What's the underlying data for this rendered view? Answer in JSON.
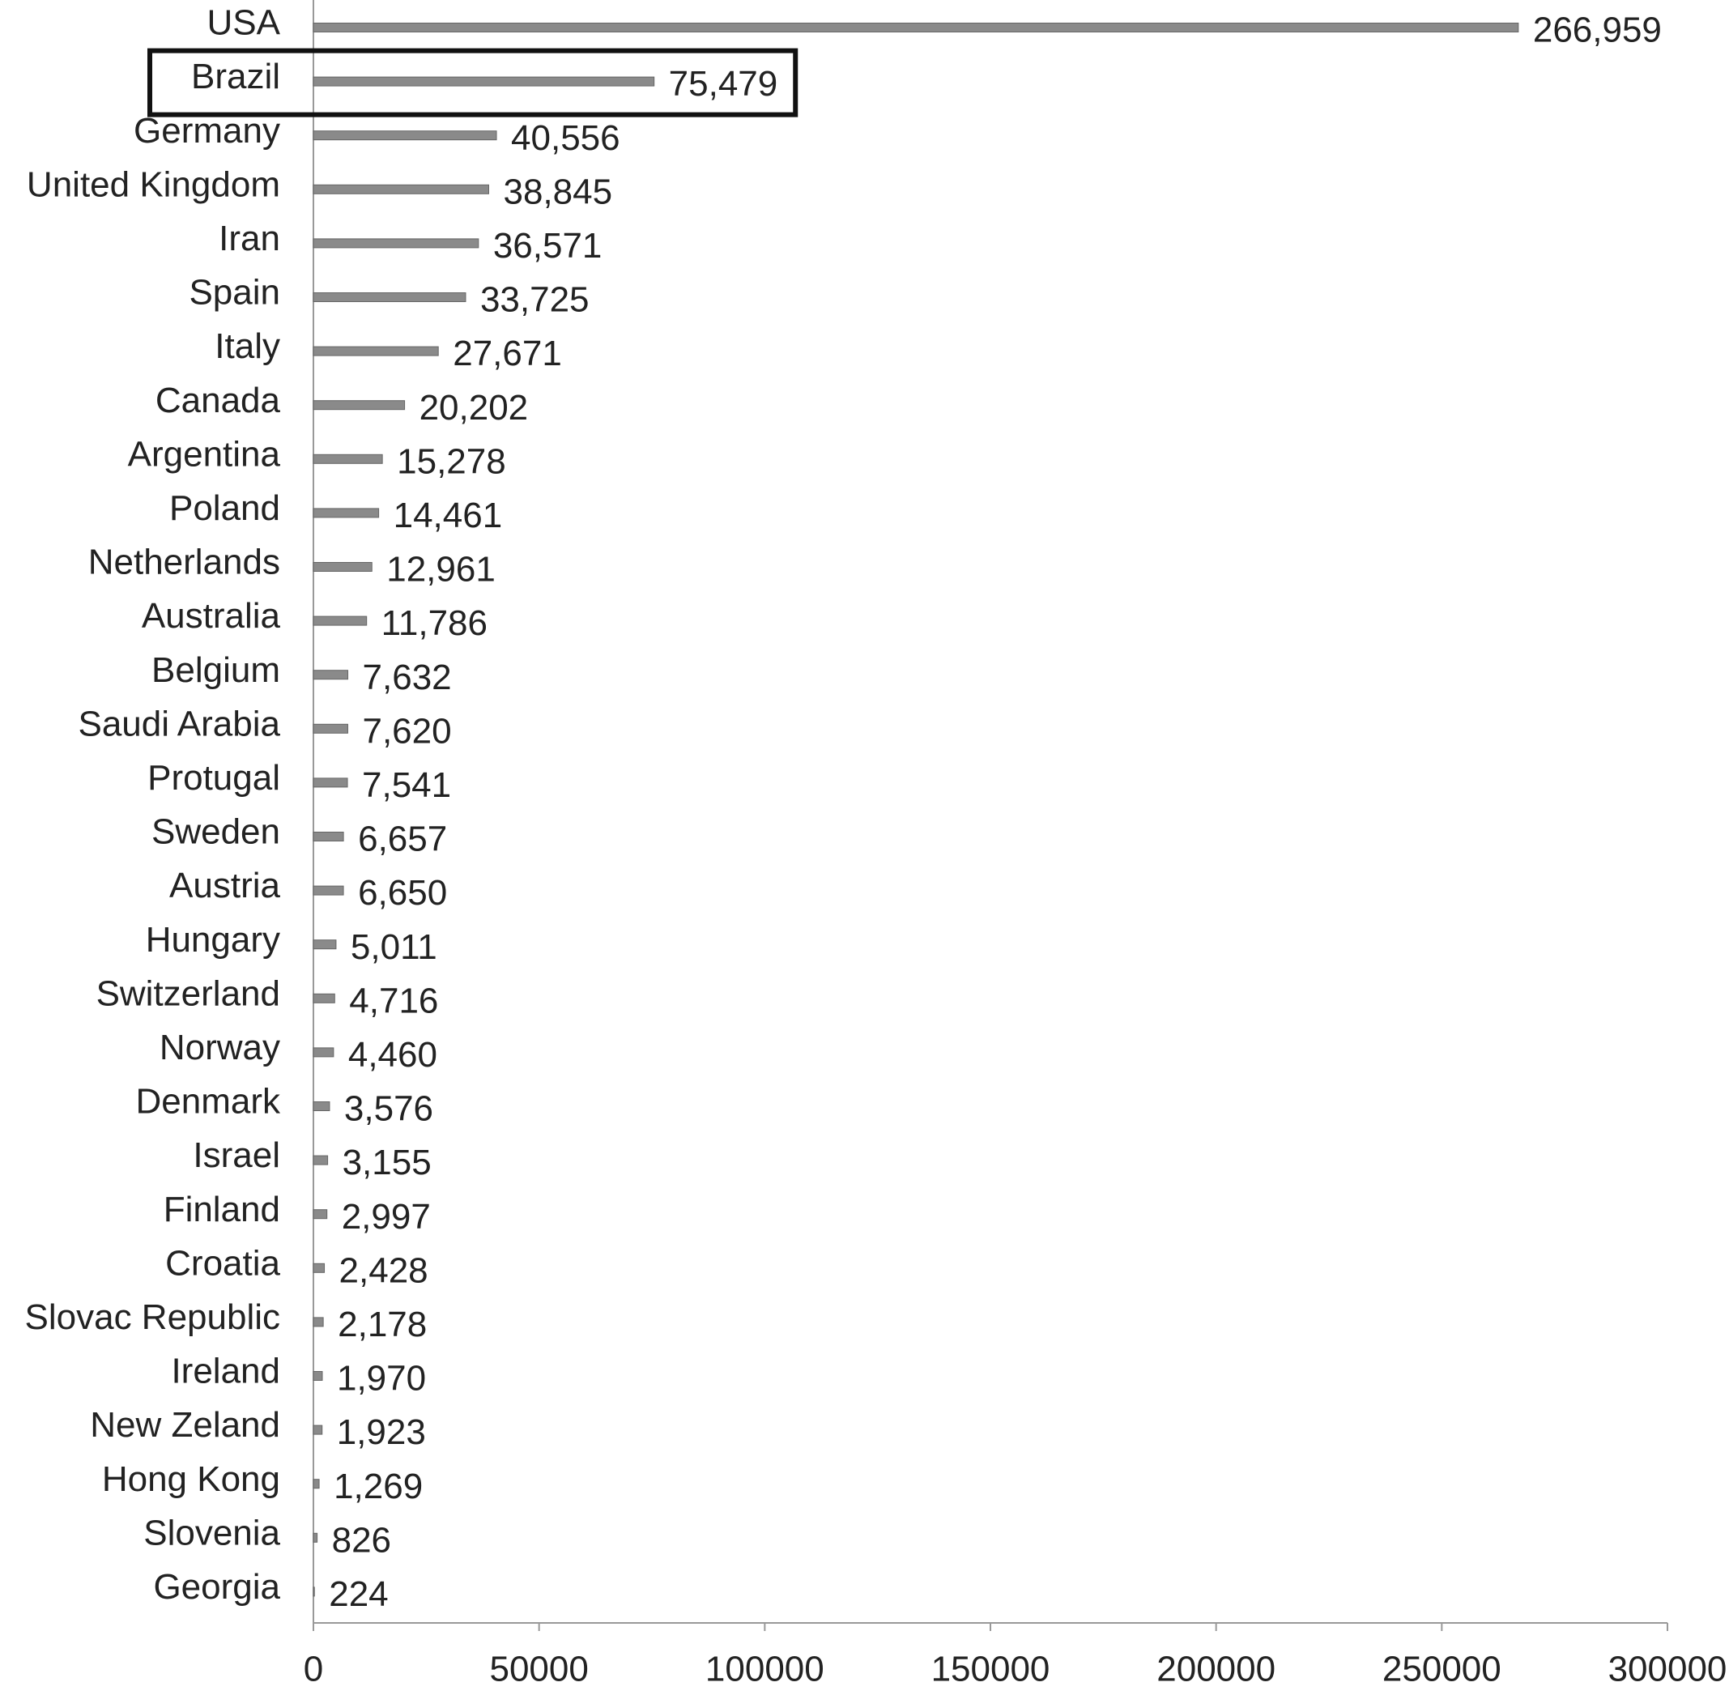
{
  "chart_data": {
    "type": "hbar",
    "categories": [
      "USA",
      "Brazil",
      "Germany",
      "United Kingdom",
      "Iran",
      "Spain",
      "Italy",
      "Canada",
      "Argentina",
      "Poland",
      "Netherlands",
      "Australia",
      "Belgium",
      "Saudi Arabia",
      "Protugal",
      "Sweden",
      "Austria",
      "Hungary",
      "Switzerland",
      "Norway",
      "Denmark",
      "Israel",
      "Finland",
      "Croatia",
      "Slovac Republic",
      "Ireland",
      "New Zeland",
      "Hong Kong",
      "Slovenia",
      "Georgia"
    ],
    "values": [
      266959,
      75479,
      40556,
      38845,
      36571,
      33725,
      27671,
      20202,
      15278,
      14461,
      12961,
      11786,
      7632,
      7620,
      7541,
      6657,
      6650,
      5011,
      4716,
      4460,
      3576,
      3155,
      2997,
      2428,
      2178,
      1970,
      1923,
      1269,
      826,
      224
    ],
    "value_labels": [
      "266,959",
      "75,479",
      "40,556",
      "38,845",
      "36,571",
      "33,725",
      "27,671",
      "20,202",
      "15,278",
      "14,461",
      "12,961",
      "11,786",
      "7,632",
      "7,620",
      "7,541",
      "6,657",
      "6,650",
      "5,011",
      "4,716",
      "4,460",
      "3,576",
      "3,155",
      "2,997",
      "2,428",
      "2,178",
      "1,970",
      "1,923",
      "1,269",
      "826",
      "224"
    ],
    "color": "#8a8a8a",
    "xlim": [
      0,
      300000
    ],
    "xticks": [
      0,
      50000,
      100000,
      150000,
      200000,
      250000,
      300000
    ],
    "highlight": "Brazil"
  }
}
